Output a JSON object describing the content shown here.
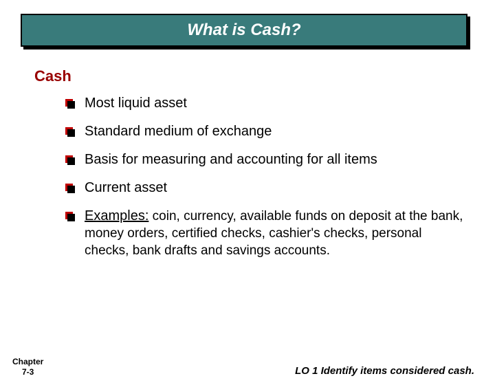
{
  "title": "What is Cash?",
  "section_heading": "Cash",
  "bullets": {
    "item0": "Most liquid asset",
    "item1": "Standard medium of exchange",
    "item2": "Basis for measuring and accounting for all items",
    "item3": "Current asset",
    "item4_lead": "Examples:",
    "item4_tail": " coin, currency, available funds on deposit at the bank, money orders, certified checks, cashier's checks, personal checks, bank drafts and savings accounts."
  },
  "footer": {
    "chapter_line1": "Chapter",
    "chapter_line2": "7-3",
    "lo": "LO 1  Identify items considered cash."
  },
  "colors": {
    "title_bg": "#397b7b",
    "title_border": "#000000",
    "title_text": "#ffffff",
    "heading": "#990000",
    "bullet_back": "#c00000",
    "bullet_front": "#000000",
    "body_text": "#000000",
    "background": "#ffffff"
  }
}
